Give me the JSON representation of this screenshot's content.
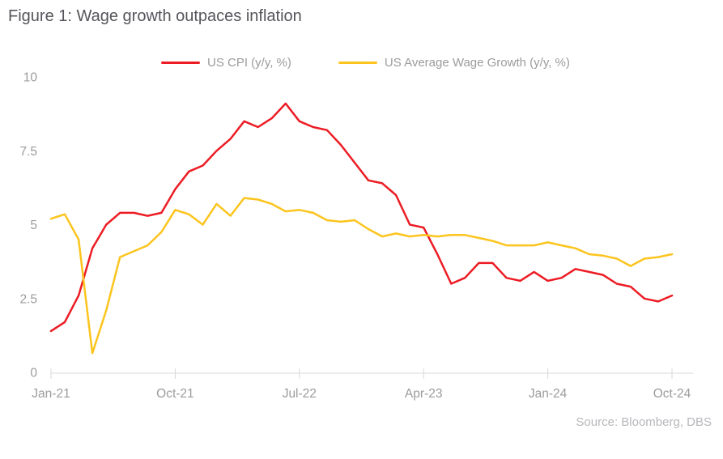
{
  "title": "Figure 1: Wage growth outpaces inflation",
  "source": "Source: Bloomberg, DBS",
  "legend": {
    "cpi_label": "US CPI (y/y, %)",
    "wage_label": "US Average Wage Growth (y/y, %)"
  },
  "colors": {
    "cpi": "#ed1c24",
    "wage": "#fcc41d",
    "axis_line": "#d8d8d8",
    "tick_text": "#9b9b9b",
    "title_text": "#55565b",
    "source_text": "#b7b7bc"
  },
  "chart_data": {
    "type": "line",
    "title": "Figure 1: Wage growth outpaces inflation",
    "xlabel": "",
    "ylabel": "",
    "ylim": [
      0,
      10
    ],
    "y_ticks": [
      0,
      2.5,
      5,
      7.5,
      10
    ],
    "y_tick_labels": [
      "0",
      "2.5",
      "5",
      "7.5",
      "10"
    ],
    "x_tick_indices": [
      0,
      9,
      18,
      27,
      36,
      45
    ],
    "x_tick_labels": [
      "Jan-21",
      "Oct-21",
      "Jul-22",
      "Apr-23",
      "Jan-24",
      "Oct-24"
    ],
    "grid": false,
    "legend_position": "top",
    "x": [
      "Jan-21",
      "Feb-21",
      "Mar-21",
      "Apr-21",
      "May-21",
      "Jun-21",
      "Jul-21",
      "Aug-21",
      "Sep-21",
      "Oct-21",
      "Nov-21",
      "Dec-21",
      "Jan-22",
      "Feb-22",
      "Mar-22",
      "Apr-22",
      "May-22",
      "Jun-22",
      "Jul-22",
      "Aug-22",
      "Sep-22",
      "Oct-22",
      "Nov-22",
      "Dec-22",
      "Jan-23",
      "Feb-23",
      "Mar-23",
      "Apr-23",
      "May-23",
      "Jun-23",
      "Jul-23",
      "Aug-23",
      "Sep-23",
      "Oct-23",
      "Nov-23",
      "Dec-23",
      "Jan-24",
      "Feb-24",
      "Mar-24",
      "Apr-24",
      "May-24",
      "Jun-24",
      "Jul-24",
      "Aug-24",
      "Sep-24",
      "Oct-24"
    ],
    "series": [
      {
        "name": "US CPI (y/y, %)",
        "color": "#ed1c24",
        "values": [
          1.4,
          1.7,
          2.6,
          4.2,
          5.0,
          5.4,
          5.4,
          5.3,
          5.4,
          6.2,
          6.8,
          7.0,
          7.5,
          7.9,
          8.5,
          8.3,
          8.6,
          9.1,
          8.5,
          8.3,
          8.2,
          7.7,
          7.1,
          6.5,
          6.4,
          6.0,
          5.0,
          4.9,
          4.0,
          3.0,
          3.2,
          3.7,
          3.7,
          3.2,
          3.1,
          3.4,
          3.1,
          3.2,
          3.5,
          3.4,
          3.3,
          3.0,
          2.9,
          2.5,
          2.4,
          2.6
        ]
      },
      {
        "name": "US Average Wage Growth (y/y, %)",
        "color": "#fcc41d",
        "values": [
          5.2,
          5.35,
          4.5,
          0.65,
          2.1,
          3.9,
          4.1,
          4.3,
          4.75,
          5.5,
          5.35,
          5.0,
          5.7,
          5.3,
          5.9,
          5.85,
          5.7,
          5.45,
          5.5,
          5.4,
          5.15,
          5.1,
          5.15,
          4.85,
          4.6,
          4.7,
          4.6,
          4.65,
          4.6,
          4.65,
          4.65,
          4.55,
          4.45,
          4.3,
          4.3,
          4.3,
          4.4,
          4.3,
          4.2,
          4.0,
          3.95,
          3.85,
          3.6,
          3.85,
          3.9,
          4.0
        ]
      }
    ]
  }
}
